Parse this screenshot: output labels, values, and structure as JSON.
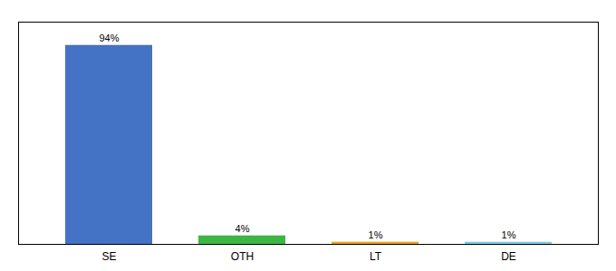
{
  "chart_data": {
    "type": "bar",
    "categories": [
      "SE",
      "OTH",
      "LT",
      "DE"
    ],
    "values": [
      94,
      4,
      1,
      1
    ],
    "value_labels": [
      "94%",
      "4%",
      "1%",
      "1%"
    ],
    "colors": [
      "#4472c4",
      "#3cb543",
      "#e8a020",
      "#7ec8e3"
    ],
    "ylim": [
      0,
      105
    ],
    "yticks": [],
    "data_labels": true,
    "tick_labels": "x",
    "grid": false
  }
}
